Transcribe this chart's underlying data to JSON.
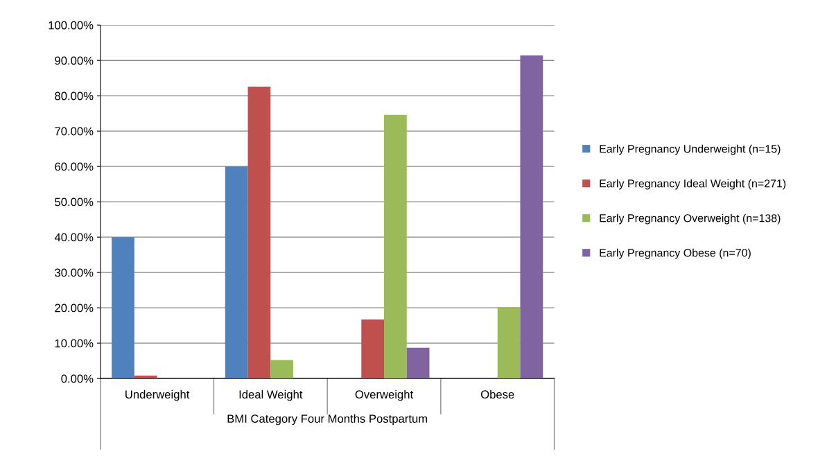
{
  "chart_data": {
    "type": "bar",
    "xlabel": "BMI Category Four Months Postpartum",
    "categories": [
      "Underweight",
      "Ideal Weight",
      "Overweight",
      "Obese"
    ],
    "series": [
      {
        "name": "Early Pregnancy Underweight (n=15)",
        "color": "#4f81bd",
        "values": [
          40.0,
          60.0,
          0,
          0
        ]
      },
      {
        "name": "Early Pregnancy Ideal Weight (n=271)",
        "color": "#c0504d",
        "values": [
          0.8,
          82.6,
          16.7,
          0
        ]
      },
      {
        "name": "Early Pregnancy Overweight (n=138)",
        "color": "#9bbb59",
        "values": [
          0,
          5.2,
          74.6,
          20.2
        ]
      },
      {
        "name": "Early Pregnancy Obese (n=70)",
        "color": "#8064a2",
        "values": [
          0,
          0,
          8.7,
          91.4
        ]
      }
    ],
    "ylim": [
      0,
      100
    ],
    "yticks": [
      {
        "value": 0,
        "label": "0.00%"
      },
      {
        "value": 10,
        "label": "10.00%"
      },
      {
        "value": 20,
        "label": "20.00%"
      },
      {
        "value": 30,
        "label": "30.00%"
      },
      {
        "value": 40,
        "label": "40.00%"
      },
      {
        "value": 50,
        "label": "50.00%"
      },
      {
        "value": 60,
        "label": "60.00%"
      },
      {
        "value": 70,
        "label": "70.00%"
      },
      {
        "value": 80,
        "label": "80.00%"
      },
      {
        "value": 90,
        "label": "90.00%"
      },
      {
        "value": 100,
        "label": "100.00%"
      }
    ],
    "grid": "y",
    "legend": "right"
  }
}
